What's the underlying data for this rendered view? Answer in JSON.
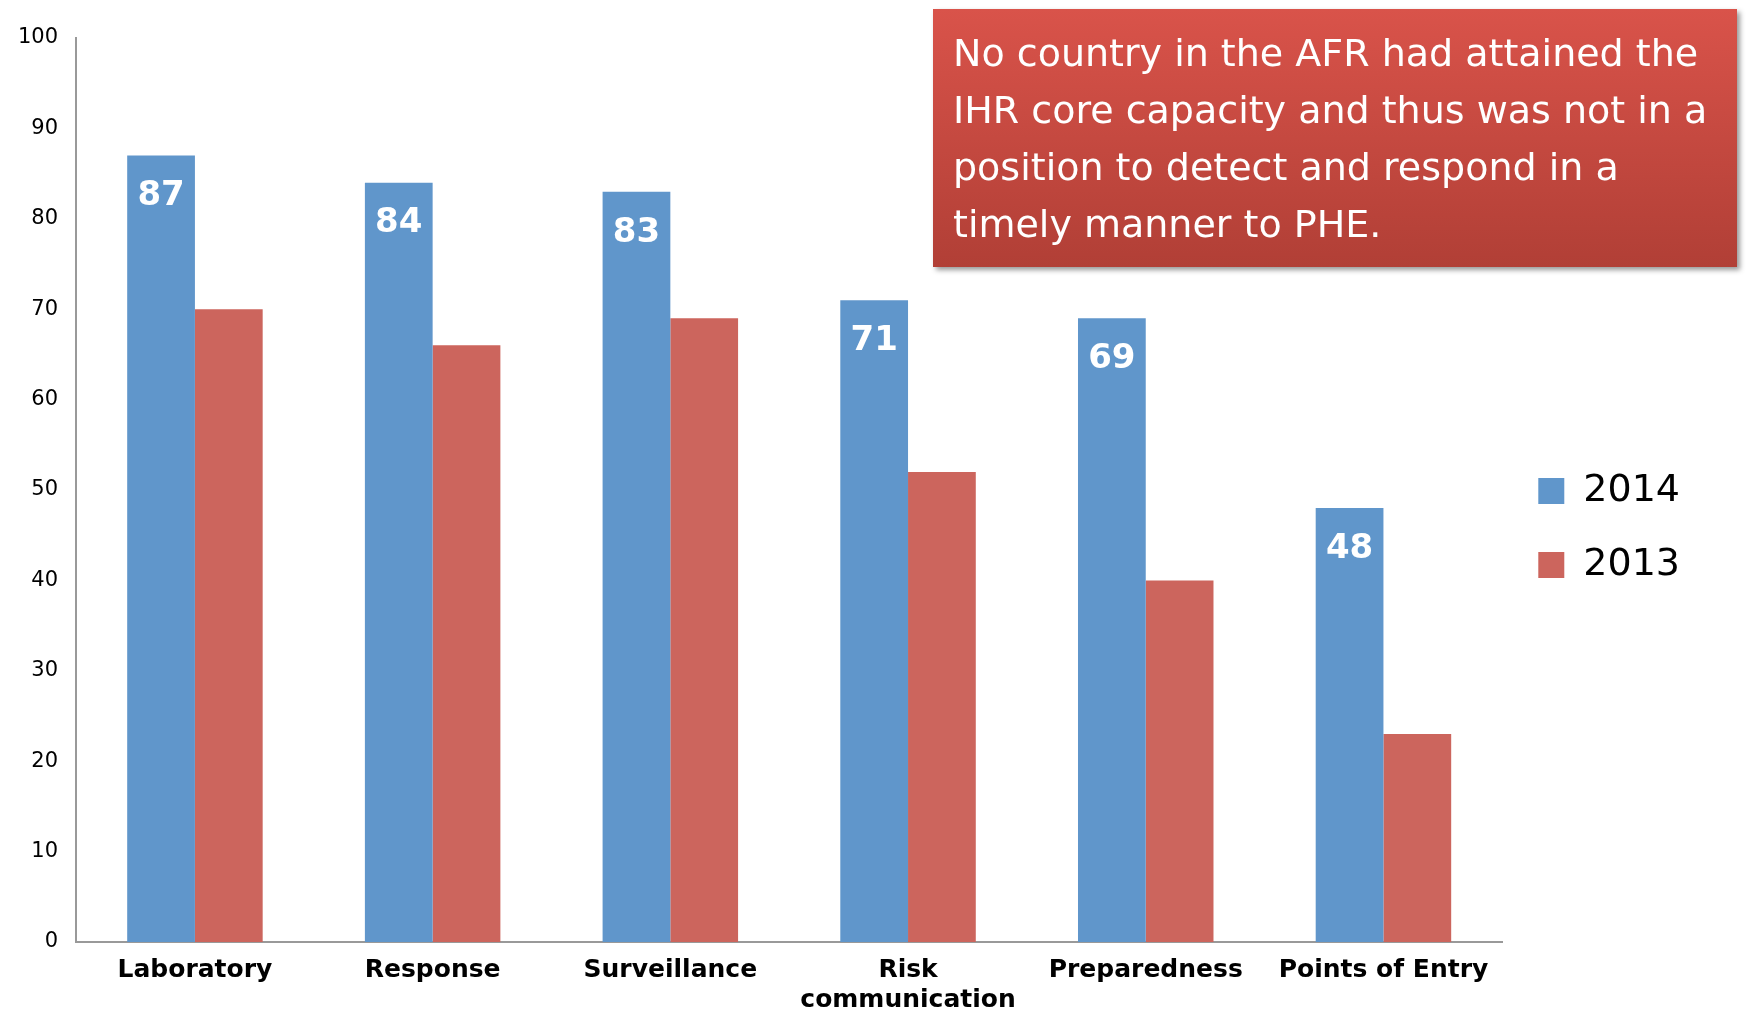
{
  "chart_data": {
    "type": "bar",
    "categories": [
      "Laboratory",
      "Response",
      "Surveillance",
      "Risk communication",
      "Preparedness",
      "Points of Entry"
    ],
    "series": [
      {
        "name": "2014",
        "color": "#6096cb",
        "values": [
          87,
          84,
          83,
          71,
          69,
          48
        ],
        "value_labels": [
          "87",
          "84",
          "83",
          "71",
          "69",
          "48"
        ]
      },
      {
        "name": "2013",
        "color": "#cc655d",
        "values": [
          70,
          66,
          69,
          52,
          40,
          23
        ]
      }
    ],
    "ylim": [
      0,
      100
    ],
    "yticks": [
      0,
      10,
      20,
      30,
      40,
      50,
      60,
      70,
      80,
      90,
      100
    ],
    "grid": false,
    "legend": "right",
    "annotations": [
      "No country in the AFR had attained the IHR core capacity and thus was not in a position to detect and respond in a timely manner to PHE."
    ]
  }
}
